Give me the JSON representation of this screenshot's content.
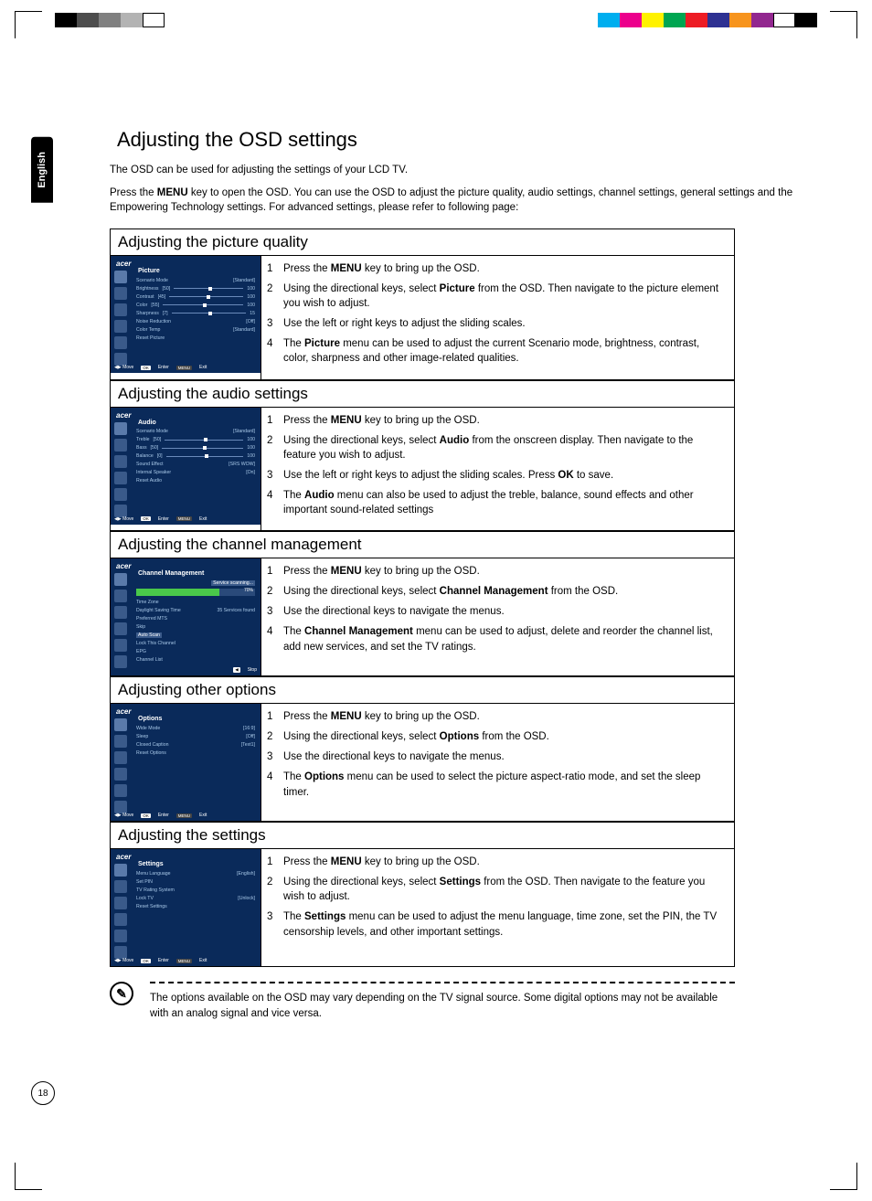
{
  "reg_colors_left": [
    "#000000",
    "#4d4d4d",
    "#808080",
    "#b3b3b3",
    "#ffffff"
  ],
  "reg_colors_right": [
    "#00aeef",
    "#ec008c",
    "#fff200",
    "#00a651",
    "#ed1c24",
    "#2e3192",
    "#f7941d",
    "#92278f",
    "#ffffff",
    "#000000"
  ],
  "lang_tab": "English",
  "page_title": "Adjusting the OSD settings",
  "intro1": "The OSD can be used for adjusting the settings of your LCD TV.",
  "intro2_pre": "Press the ",
  "intro2_bold": "MENU",
  "intro2_post": " key to open the OSD. You can use the OSD to adjust the picture quality, audio settings, channel settings, general settings and the Empowering Technology settings. For advanced settings, please refer to following page:",
  "sections": [
    {
      "header": "Adjusting the picture quality",
      "osd_title": "Picture",
      "osd_rows": [
        {
          "label": "Scenario Mode",
          "val": "[Standard]"
        },
        {
          "label": "Brightness",
          "num": "[50]",
          "slider": true,
          "end": "100"
        },
        {
          "label": "Contrast",
          "num": "[45]",
          "slider": true,
          "end": "100"
        },
        {
          "label": "Color",
          "num": "[55]",
          "slider": true,
          "end": "100"
        },
        {
          "label": "Sharpness",
          "num": "[7]",
          "slider": true,
          "end": "15"
        },
        {
          "label": "Noise Reduction",
          "val": "[Off]"
        },
        {
          "label": "Color Temp",
          "val": "[Standard]"
        },
        {
          "label": "Reset Picture",
          "val": ""
        }
      ],
      "steps": [
        [
          {
            "t": "Press the "
          },
          {
            "b": "MENU"
          },
          {
            "t": " key to bring up the OSD."
          }
        ],
        [
          {
            "t": "Using the directional keys, select "
          },
          {
            "b": "Picture"
          },
          {
            "t": " from the OSD. Then navigate to the picture element you wish to adjust."
          }
        ],
        [
          {
            "t": "Use the left or right keys to adjust the sliding scales."
          }
        ],
        [
          {
            "t": "The "
          },
          {
            "b": "Picture"
          },
          {
            "t": " menu can be used to adjust the current Scenario mode, brightness, contrast, color, sharpness and other image-related qualities."
          }
        ]
      ]
    },
    {
      "header": "Adjusting the audio settings",
      "osd_title": "Audio",
      "osd_rows": [
        {
          "label": "Scenario Mode",
          "val": "[Standard]"
        },
        {
          "label": "Treble",
          "num": "[50]",
          "slider": true,
          "end": "100"
        },
        {
          "label": "Bass",
          "num": "[50]",
          "slider": true,
          "end": "100"
        },
        {
          "label": "Balance",
          "num": "[0]",
          "slider": true,
          "end": "100"
        },
        {
          "label": "Sound Effect",
          "val": "[SRS WOW]"
        },
        {
          "label": "Internal Speaker",
          "val": "[On]"
        },
        {
          "label": "Reset Audio",
          "val": ""
        }
      ],
      "steps": [
        [
          {
            "t": "Press the "
          },
          {
            "b": "MENU"
          },
          {
            "t": " key to bring up the OSD."
          }
        ],
        [
          {
            "t": "Using the directional keys, select "
          },
          {
            "b": "Audio"
          },
          {
            "t": " from the onscreen display. Then navigate to the feature you wish to adjust."
          }
        ],
        [
          {
            "t": "Use the left or right keys to adjust the sliding scales. Press "
          },
          {
            "b": "OK"
          },
          {
            "t": " to save."
          }
        ],
        [
          {
            "t": "The "
          },
          {
            "b": "Audio"
          },
          {
            "t": " menu can also be used to adjust the treble, balance, sound effects and other important sound-related settings"
          }
        ]
      ]
    },
    {
      "header": "Adjusting the channel management",
      "osd_title": "Channel Management",
      "osd_mode": "channel",
      "osd_rows": [
        {
          "label": "Time Zone",
          "val": ""
        },
        {
          "label": "Daylight Saving Time",
          "val": "35 Services found"
        },
        {
          "label": "Preferred MTS",
          "val": ""
        },
        {
          "label": "Skip",
          "val": ""
        },
        {
          "label": "Auto Scan",
          "val": "",
          "hl": true
        },
        {
          "label": "Lock This Channel",
          "val": ""
        },
        {
          "label": "EPG",
          "val": ""
        },
        {
          "label": "Channel List",
          "val": ""
        }
      ],
      "steps": [
        [
          {
            "t": "Press the "
          },
          {
            "b": "MENU"
          },
          {
            "t": " key to bring up the OSD."
          }
        ],
        [
          {
            "t": "Using the directional keys, select "
          },
          {
            "b": "Channel Management"
          },
          {
            "t": " from the OSD."
          }
        ],
        [
          {
            "t": "Use the directional keys to navigate the menus."
          }
        ],
        [
          {
            "t": "The "
          },
          {
            "b": "Channel Management"
          },
          {
            "t": " menu can be used to adjust, delete and reorder the channel list, add new services, and set the TV ratings."
          }
        ]
      ]
    },
    {
      "header": "Adjusting other options",
      "osd_title": "Options",
      "osd_rows": [
        {
          "label": "Wide Mode",
          "val": "[16:9]"
        },
        {
          "label": "Sleep",
          "val": "[Off]"
        },
        {
          "label": "Closed Caption",
          "val": "[Text1]"
        },
        {
          "label": "Reset Options",
          "val": ""
        }
      ],
      "steps": [
        [
          {
            "t": "Press the "
          },
          {
            "b": "MENU"
          },
          {
            "t": " key to bring up the OSD."
          }
        ],
        [
          {
            "t": "Using the directional keys, select "
          },
          {
            "b": "Options"
          },
          {
            "t": " from the OSD."
          }
        ],
        [
          {
            "t": "Use the directional keys to navigate the menus."
          }
        ],
        [
          {
            "t": "The "
          },
          {
            "b": "Options"
          },
          {
            "t": " menu can be used to select the picture aspect-ratio mode, and set the sleep timer."
          }
        ]
      ]
    },
    {
      "header": "Adjusting the settings",
      "osd_title": "Settings",
      "osd_rows": [
        {
          "label": "Menu Language",
          "val": "[English]"
        },
        {
          "label": "Set PIN",
          "val": ""
        },
        {
          "label": "TV Rating System",
          "val": ""
        },
        {
          "label": "Lock TV",
          "val": "[Unlock]"
        },
        {
          "label": "Reset Settings",
          "val": ""
        }
      ],
      "steps": [
        [
          {
            "t": "Press the "
          },
          {
            "b": "MENU"
          },
          {
            "t": " key to bring up the OSD."
          }
        ],
        [
          {
            "t": "Using the directional keys, select "
          },
          {
            "b": "Settings"
          },
          {
            "t": " from the OSD. Then navigate to the feature you wish to adjust."
          }
        ],
        [
          {
            "t": "The "
          },
          {
            "b": "Settings"
          },
          {
            "t": " menu can be used to adjust the menu language, time zone, set the PIN, the TV censorship levels, and other important settings."
          }
        ]
      ]
    }
  ],
  "note_text": "The options available on the OSD may vary depending on the TV signal source. Some digital options may not be available with an analog signal and vice versa.",
  "page_number": "18",
  "osd_footer": {
    "move": "Move",
    "enter": "Enter",
    "exit": "Exit",
    "stop": "Stop",
    "scanning": "Service scanning...",
    "pct": "70%"
  },
  "brand": "acer"
}
